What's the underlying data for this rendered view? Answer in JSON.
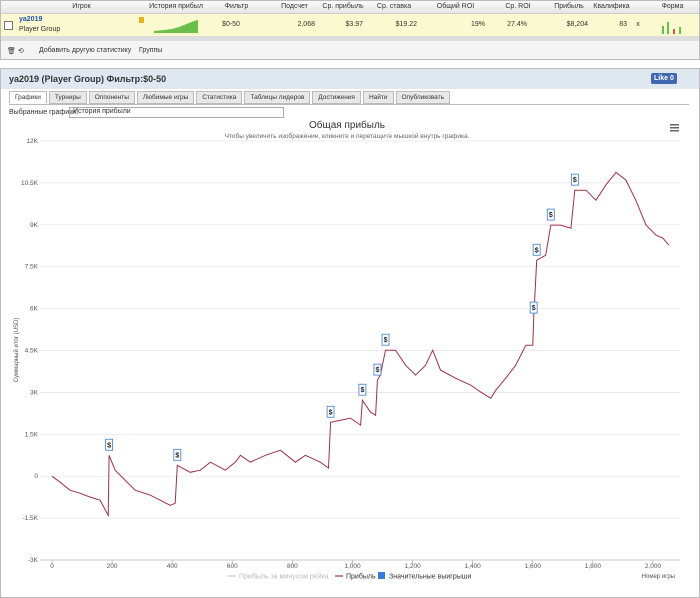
{
  "table": {
    "columns": [
      "Игрок",
      "История прибыл",
      "Фильтр",
      "Подсчет",
      "Ср. прибыль",
      "Ср. ставка",
      "Общий ROI",
      "Ср. ROI",
      "Прибыль",
      "Квалифика",
      "Форма"
    ],
    "row": {
      "player": "ya2019",
      "group": "Player Group",
      "filter": "$0-50",
      "count": "2,068",
      "avg_profit": "$3.97",
      "avg_stake": "$19.22",
      "total_roi": "19%",
      "avg_roi": "27.4%",
      "profit": "$8,204",
      "qual": "83",
      "x": "x"
    }
  },
  "toolbar": {
    "add_stat": "Добавить другую статистику",
    "groups": "Группы"
  },
  "header": {
    "title": "ya2019 (Player Group) Фильтр:$0-50",
    "like": "Like",
    "like_count": "0"
  },
  "tabs": [
    "Графики",
    "Турниры",
    "Оппоненты",
    "Любимые игры",
    "Статистика",
    "Таблицы лидеров",
    "Достижения",
    "Найти",
    "Опубликовать"
  ],
  "selector": {
    "label": "Выбранные графики:",
    "value": "История прибыли"
  },
  "chart_data": {
    "type": "line",
    "title": "Общая прибыль",
    "subtitle": "Чтобы увеличить изображение, кликните и перетащите мышкой внутрь графика.",
    "y_label": "Суммарный итог (USD)",
    "x_label": "Номер игры",
    "grid": true,
    "xlim": [
      -40,
      2090
    ],
    "ylim": [
      -3000,
      12000
    ],
    "xticks": [
      0,
      200,
      400,
      600,
      800,
      {
        "value": 1000,
        "label": "1,000"
      },
      {
        "value": 1200,
        "label": "1,200"
      },
      {
        "value": 1400,
        "label": "1,400"
      },
      {
        "value": 1600,
        "label": "1,600"
      },
      {
        "value": 1800,
        "label": "1,800"
      },
      {
        "value": 2000,
        "label": "2,000"
      }
    ],
    "yticks": [
      {
        "value": -3000,
        "label": "-3K"
      },
      {
        "value": -1500,
        "label": "-1.5K"
      },
      0,
      {
        "value": 1500,
        "label": "1.5K"
      },
      {
        "value": 3000,
        "label": "3K"
      },
      {
        "value": 4500,
        "label": "4.5K"
      },
      {
        "value": 6000,
        "label": "6K"
      },
      {
        "value": 7500,
        "label": "7.5K"
      },
      {
        "value": 9000,
        "label": "9K"
      },
      {
        "value": 10500,
        "label": "10.5K"
      },
      {
        "value": 12000,
        "label": "12K"
      }
    ],
    "series": [
      {
        "name": "Прибыль за минусом рейка",
        "color": "#cccccc",
        "visible": false
      },
      {
        "name": "Прибыль",
        "color": "#a0304a",
        "x": [
          0,
          27,
          60,
          93,
          127,
          160,
          187,
          190,
          210,
          243,
          277,
          327,
          360,
          393,
          410,
          417,
          460,
          493,
          527,
          577,
          610,
          627,
          660,
          710,
          760,
          810,
          843,
          893,
          920,
          927,
          960,
          993,
          1027,
          1033,
          1060,
          1077,
          1083,
          1093,
          1110,
          1143,
          1177,
          1210,
          1243,
          1267,
          1293,
          1343,
          1393,
          1427,
          1460,
          1477,
          1510,
          1543,
          1577,
          1600,
          1603,
          1613,
          1643,
          1660,
          1693,
          1727,
          1740,
          1777,
          1810,
          1843,
          1877,
          1910,
          1943,
          1977,
          2010,
          2033,
          2053
        ],
        "values": [
          0,
          -215,
          -500,
          -610,
          -750,
          -860,
          -1400,
          750,
          215,
          -140,
          -500,
          -680,
          -860,
          -1040,
          -970,
          390,
          140,
          215,
          500,
          215,
          500,
          750,
          500,
          750,
          930,
          500,
          750,
          500,
          290,
          1930,
          2000,
          2080,
          1830,
          2720,
          2290,
          2180,
          3440,
          3620,
          4510,
          4510,
          3970,
          3620,
          3970,
          4510,
          3800,
          3510,
          3260,
          3010,
          2790,
          3080,
          3510,
          3970,
          4690,
          4690,
          5660,
          7730,
          7910,
          8990,
          8990,
          8880,
          10240,
          10240,
          9880,
          10420,
          10880,
          10600,
          9880,
          8990,
          8630,
          8520,
          8270
        ]
      },
      {
        "name": "Значительные выигрыши",
        "color": "#3a7bd5",
        "marker_label": "$",
        "x": [
          190,
          417,
          927,
          1033,
          1083,
          1110,
          1603,
          1613,
          1660,
          1740
        ],
        "values": [
          750,
          390,
          1930,
          2720,
          3440,
          4510,
          5660,
          7730,
          8990,
          10240
        ]
      }
    ]
  }
}
